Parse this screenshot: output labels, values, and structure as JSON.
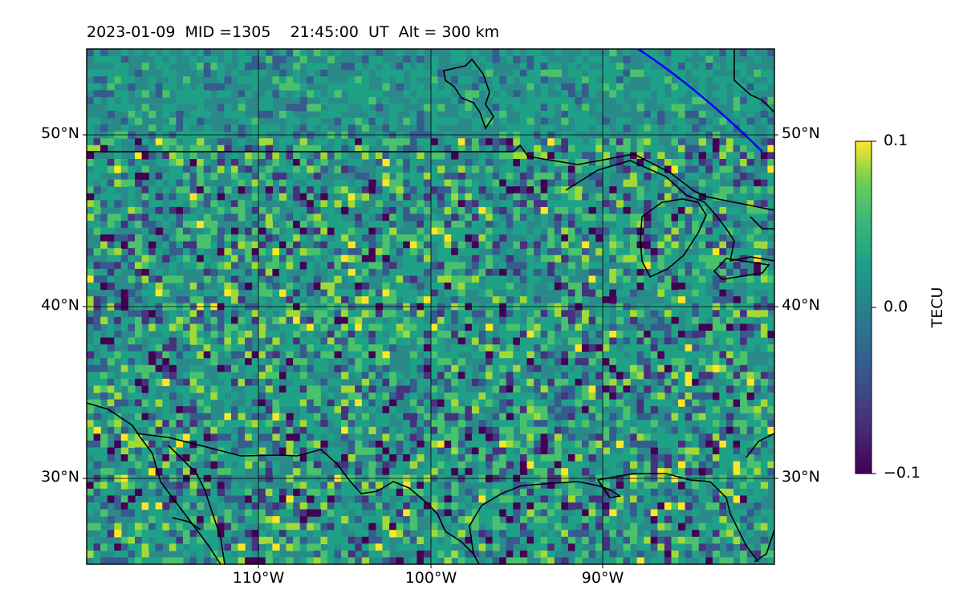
{
  "title": "2023-01-09  MID =1305    21:45:00  UT  Alt = 300 km",
  "map": {
    "lon_range": [
      -120,
      -80
    ],
    "lat_range": [
      25,
      55
    ],
    "lat_ticks": [
      {
        "value": 30,
        "label": "30°N"
      },
      {
        "value": 40,
        "label": "40°N"
      },
      {
        "value": 50,
        "label": "50°N"
      }
    ],
    "lon_ticks": [
      {
        "value": -110,
        "label": "110°W"
      },
      {
        "value": -100,
        "label": "100°W"
      },
      {
        "value": -90,
        "label": "90°W"
      }
    ],
    "field": "differential TEC perturbation map (viridis), mostly near zero with scattered positive and negative cells",
    "overlay_line_color": "#0000ff",
    "coastline_color": "#000000"
  },
  "colorbar": {
    "label": "TECU",
    "min": -0.1,
    "max": 0.1,
    "ticks": [
      {
        "value": 0.1,
        "label": "0.1"
      },
      {
        "value": 0.0,
        "label": "0.0"
      },
      {
        "value": -0.1,
        "label": "−0.1"
      }
    ],
    "colormap": "viridis"
  }
}
